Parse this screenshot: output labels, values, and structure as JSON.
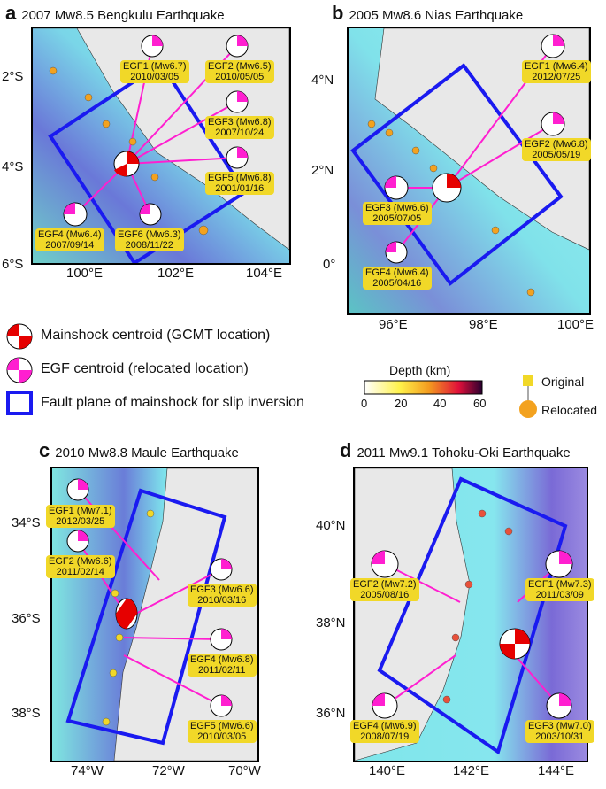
{
  "panels": [
    {
      "letter": "a",
      "title": "2007 Mw8.5 Bengkulu Earthquake",
      "lat_ticks": [
        "2°S",
        "4°S",
        "6°S"
      ],
      "lon_ticks": [
        "100°E",
        "102°E",
        "104°E"
      ],
      "egfs": [
        {
          "name": "EGF1 (Mw6.7)",
          "date": "2010/03/05"
        },
        {
          "name": "EGF2 (Mw6.5)",
          "date": "2010/05/05"
        },
        {
          "name": "EGF3 (Mw6.8)",
          "date": "2007/10/24"
        },
        {
          "name": "EGF5 (Mw6.8)",
          "date": "2001/01/16"
        },
        {
          "name": "EGF4 (Mw6.4)",
          "date": "2007/09/14"
        },
        {
          "name": "EGF6 (Mw6.3)",
          "date": "2008/11/22"
        }
      ]
    },
    {
      "letter": "b",
      "title": "2005 Mw8.6 Nias Earthquake",
      "lat_ticks": [
        "4°N",
        "2°N",
        "0°"
      ],
      "lon_ticks": [
        "96°E",
        "98°E",
        "100°E"
      ],
      "egfs": [
        {
          "name": "EGF1 (Mw6.4)",
          "date": "2012/07/25"
        },
        {
          "name": "EGF2 (Mw6.8)",
          "date": "2005/05/19"
        },
        {
          "name": "EGF3 (Mw6.6)",
          "date": "2005/07/05"
        },
        {
          "name": "EGF4 (Mw6.4)",
          "date": "2005/04/16"
        }
      ]
    },
    {
      "letter": "c",
      "title": "2010 Mw8.8 Maule Earthquake",
      "lat_ticks": [
        "34°S",
        "36°S",
        "38°S"
      ],
      "lon_ticks": [
        "74°W",
        "72°W",
        "70°W"
      ],
      "egfs": [
        {
          "name": "EGF1 (Mw7.1)",
          "date": "2012/03/25"
        },
        {
          "name": "EGF2 (Mw6.6)",
          "date": "2011/02/14"
        },
        {
          "name": "EGF3 (Mw6.6)",
          "date": "2010/03/16"
        },
        {
          "name": "EGF4 (Mw6.8)",
          "date": "2011/02/11"
        },
        {
          "name": "EGF5 (Mw6.6)",
          "date": "2010/03/05"
        }
      ]
    },
    {
      "letter": "d",
      "title": "2011 Mw9.1 Tohoku-Oki Earthquake",
      "lat_ticks": [
        "40°N",
        "38°N",
        "36°N"
      ],
      "lon_ticks": [
        "140°E",
        "142°E",
        "144°E"
      ],
      "egfs": [
        {
          "name": "EGF2 (Mw7.2)",
          "date": "2005/08/16"
        },
        {
          "name": "EGF1 (Mw7.3)",
          "date": "2011/03/09"
        },
        {
          "name": "EGF4 (Mw6.9)",
          "date": "2008/07/19"
        },
        {
          "name": "EGF3 (Mw7.0)",
          "date": "2003/10/31"
        }
      ]
    }
  ],
  "legend": {
    "mainshock": "Mainshock centroid (GCMT location)",
    "egf": "EGF centroid (relocated location)",
    "fault": "Fault plane of mainshock for slip inversion",
    "depth_title": "Depth (km)",
    "depth_ticks": [
      "0",
      "20",
      "40",
      "60"
    ],
    "original": "Original",
    "relocated": "Relocated"
  },
  "colors": {
    "fault": "#1a1af0",
    "egf_line": "#ff1fd0",
    "mainshock": "#e60000",
    "label_bg": "#f1d828",
    "egf_fill": "#ff1fd0"
  }
}
